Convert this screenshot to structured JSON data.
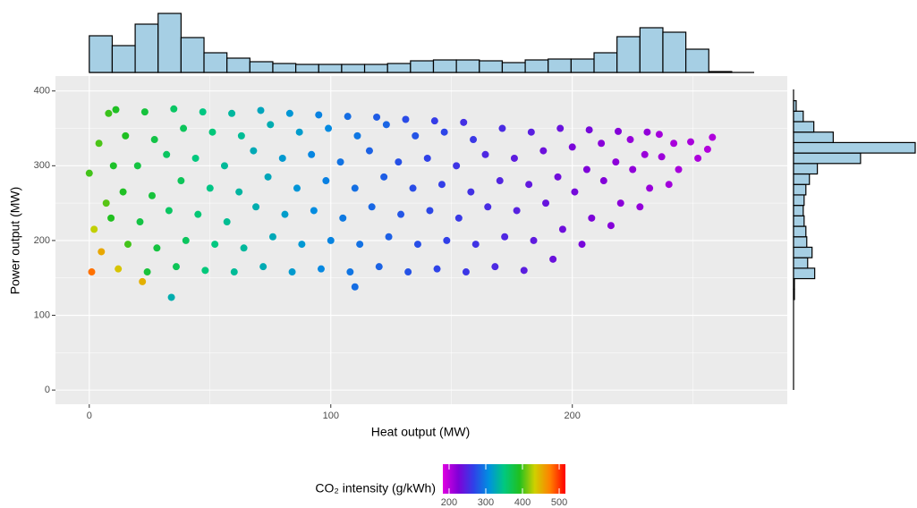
{
  "chart_data": [
    {
      "type": "scatter",
      "x_label": "Heat output (MW)",
      "y_label": "Power output (MW)",
      "xlim": [
        -14,
        289
      ],
      "ylim": [
        -19,
        420
      ],
      "xticks": [
        0,
        100,
        200
      ],
      "yticks": [
        0,
        100,
        200,
        300,
        400
      ],
      "xminor": [
        50,
        150,
        250
      ],
      "yminor": [
        50,
        150,
        250,
        350
      ],
      "grid": true,
      "x": [
        1,
        5,
        2,
        7,
        0,
        4,
        8,
        12,
        16,
        9,
        14,
        10,
        15,
        11,
        24,
        28,
        21,
        26,
        20,
        27,
        23,
        36,
        40,
        33,
        38,
        32,
        39,
        35,
        48,
        52,
        45,
        50,
        44,
        51,
        47,
        60,
        64,
        57,
        62,
        56,
        63,
        59,
        72,
        76,
        69,
        74,
        68,
        75,
        71,
        84,
        88,
        81,
        86,
        80,
        87,
        83,
        96,
        100,
        93,
        98,
        92,
        99,
        95,
        108,
        112,
        105,
        110,
        104,
        111,
        107,
        120,
        124,
        117,
        122,
        116,
        123,
        119,
        132,
        136,
        129,
        134,
        128,
        135,
        131,
        144,
        148,
        141,
        146,
        140,
        147,
        143,
        156,
        160,
        153,
        158,
        152,
        159,
        155,
        168,
        172,
        165,
        170,
        164,
        171,
        180,
        184,
        177,
        182,
        176,
        183,
        192,
        196,
        189,
        194,
        188,
        195,
        204,
        208,
        201,
        206,
        200,
        207,
        216,
        220,
        213,
        218,
        212,
        219,
        228,
        232,
        225,
        230,
        224,
        231,
        240,
        244,
        237,
        242,
        236,
        252,
        256,
        249,
        258,
        34,
        110,
        22
      ],
      "y": [
        158,
        185,
        215,
        250,
        290,
        330,
        370,
        162,
        195,
        230,
        265,
        300,
        340,
        375,
        158,
        190,
        225,
        260,
        300,
        335,
        372,
        165,
        200,
        240,
        280,
        315,
        350,
        376,
        160,
        195,
        235,
        270,
        310,
        345,
        372,
        158,
        190,
        225,
        265,
        300,
        340,
        370,
        165,
        205,
        245,
        285,
        320,
        355,
        374,
        158,
        195,
        235,
        270,
        310,
        345,
        370,
        162,
        200,
        240,
        280,
        315,
        350,
        368,
        158,
        195,
        230,
        270,
        305,
        340,
        366,
        165,
        205,
        245,
        285,
        320,
        355,
        365,
        158,
        195,
        235,
        270,
        305,
        340,
        362,
        162,
        200,
        240,
        275,
        310,
        345,
        360,
        158,
        195,
        230,
        265,
        300,
        335,
        358,
        165,
        205,
        245,
        280,
        315,
        350,
        160,
        200,
        240,
        275,
        310,
        345,
        175,
        215,
        250,
        285,
        320,
        350,
        195,
        230,
        265,
        295,
        325,
        348,
        220,
        250,
        280,
        305,
        330,
        346,
        245,
        270,
        295,
        315,
        335,
        345,
        275,
        295,
        312,
        330,
        342,
        310,
        322,
        332,
        338,
        124,
        138,
        145
      ],
      "color_values": [
        480,
        455,
        430,
        405,
        400,
        402,
        398,
        440,
        400,
        392,
        390,
        388,
        391,
        390,
        380,
        378,
        376,
        380,
        377,
        375,
        379,
        368,
        365,
        363,
        367,
        364,
        366,
        362,
        352,
        350,
        355,
        348,
        351,
        353,
        349,
        340,
        338,
        342,
        336,
        339,
        341,
        337,
        328,
        326,
        330,
        325,
        327,
        329,
        324,
        316,
        314,
        318,
        312,
        315,
        317,
        313,
        304,
        302,
        306,
        300,
        303,
        305,
        301,
        294,
        292,
        296,
        291,
        293,
        295,
        290,
        285,
        283,
        287,
        282,
        284,
        286,
        281,
        276,
        274,
        278,
        273,
        275,
        277,
        272,
        268,
        266,
        270,
        265,
        267,
        269,
        264,
        260,
        258,
        262,
        257,
        259,
        261,
        256,
        252,
        250,
        254,
        249,
        251,
        253,
        244,
        242,
        246,
        241,
        243,
        245,
        236,
        234,
        238,
        233,
        235,
        237,
        229,
        227,
        231,
        226,
        228,
        230,
        222,
        220,
        224,
        219,
        221,
        223,
        216,
        214,
        218,
        213,
        215,
        217,
        210,
        208,
        212,
        207,
        209,
        205,
        203,
        207,
        204,
        330,
        290,
        450
      ],
      "colorbar_title": "CO₂ intensity (g/kWh)",
      "clim": [
        183,
        517
      ],
      "cticks": [
        200,
        300,
        400,
        500
      ],
      "colors": [
        "#e000e0",
        "#8000d8",
        "#3040e8",
        "#0090e0",
        "#00c880",
        "#20c020",
        "#d0d000",
        "#ff8000",
        "#ff0000"
      ]
    },
    {
      "type": "histogram",
      "orientation": "vertical",
      "color": "#a6cfe4",
      "bins": [
        0,
        9.5,
        19,
        28.5,
        38,
        47.5,
        57,
        66.5,
        76,
        85.5,
        95,
        104.5,
        114,
        123.5,
        133,
        142.5,
        152,
        161.5,
        171,
        180.5,
        190,
        199.5,
        209,
        218.5,
        228,
        237.5,
        247,
        256.5,
        266
      ],
      "counts": [
        41,
        30,
        54,
        66,
        39,
        22,
        16,
        12,
        10,
        9,
        9,
        9,
        9,
        10,
        13,
        14,
        14,
        13,
        11,
        14,
        15,
        15,
        22,
        40,
        50,
        45,
        26,
        1
      ]
    },
    {
      "type": "histogram",
      "orientation": "horizontal",
      "color": "#a6cfe4",
      "bins": [
        121,
        135,
        149,
        163,
        177,
        191,
        205,
        219,
        233,
        247,
        261,
        275,
        289,
        303,
        317,
        331,
        345,
        359,
        373,
        387
      ],
      "counts": [
        1,
        1,
        24,
        16,
        21,
        15,
        14,
        12,
        11,
        12,
        14,
        18,
        27,
        76,
        138,
        45,
        23,
        11,
        3
      ]
    }
  ]
}
